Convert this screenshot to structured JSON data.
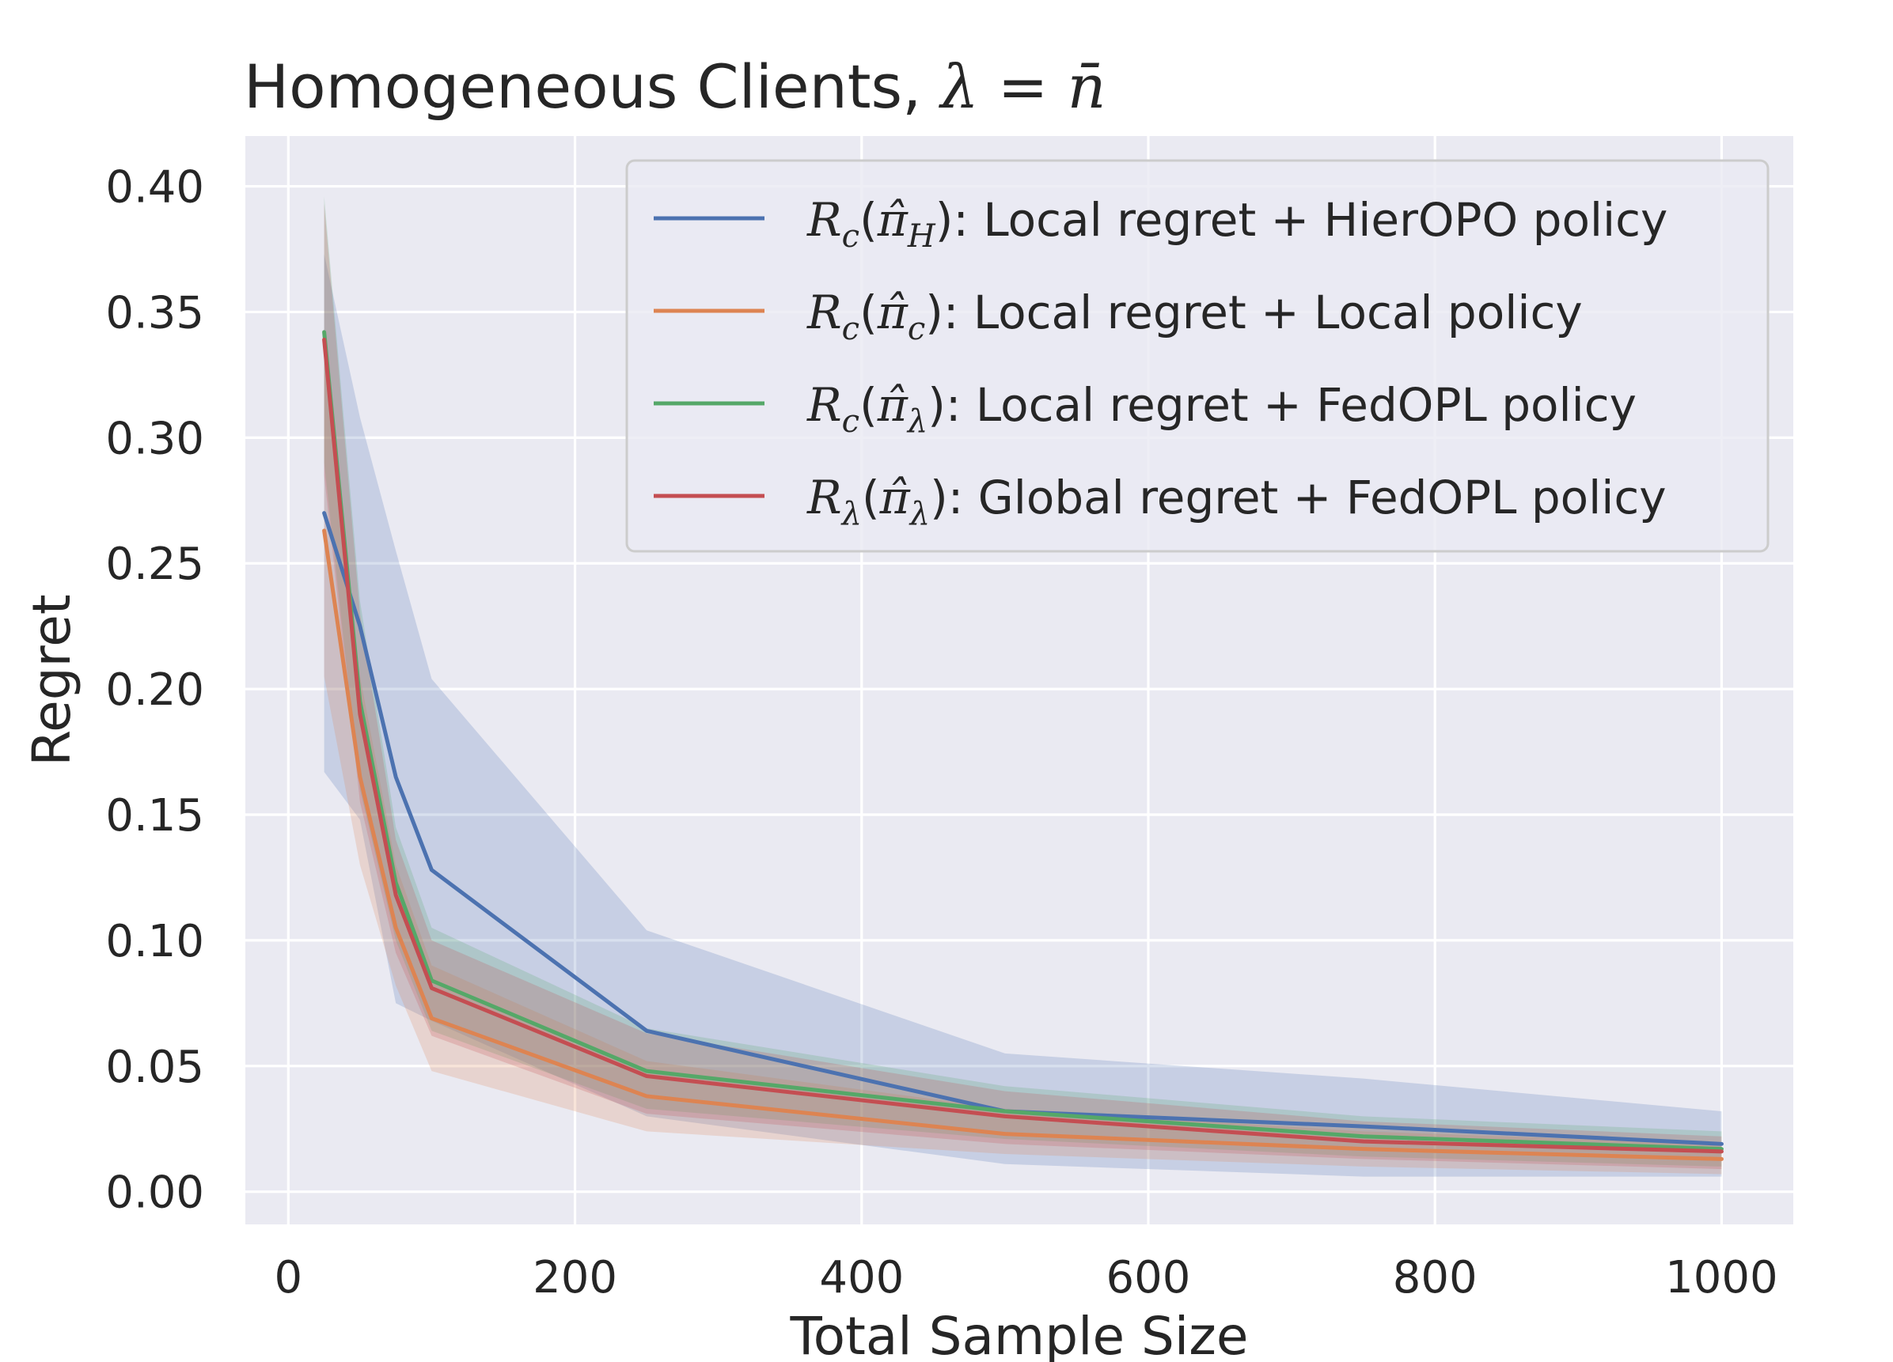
{
  "chart_data": {
    "type": "line",
    "title": "Homogeneous Clients, λ = n̄",
    "xlabel": "Total Sample Size",
    "ylabel": "Regret",
    "xlim": [
      -30,
      1050
    ],
    "ylim": [
      -0.013,
      0.42
    ],
    "xticks": [
      0,
      200,
      400,
      600,
      800,
      1000
    ],
    "xtick_labels": [
      "0",
      "200",
      "400",
      "600",
      "800",
      "1000"
    ],
    "yticks": [
      0.0,
      0.05,
      0.1,
      0.15,
      0.2,
      0.25,
      0.3,
      0.35,
      0.4
    ],
    "ytick_labels": [
      "0.00",
      "0.05",
      "0.10",
      "0.15",
      "0.20",
      "0.25",
      "0.30",
      "0.35",
      "0.40"
    ],
    "grid": true,
    "legend_position": "top-right",
    "x": [
      25,
      50,
      75,
      100,
      250,
      500,
      750,
      1000
    ],
    "series": [
      {
        "name": "R_c(π̂_H): Local regret + HierOPO policy",
        "legend_parts": {
          "R": "R",
          "R_sub": "c",
          "pi_sub": "H",
          "text": ": Local regret + HierOPO policy"
        },
        "color": "#4c72b0",
        "values": [
          0.27,
          0.225,
          0.165,
          0.128,
          0.064,
          0.032,
          0.026,
          0.019
        ],
        "lower": [
          0.167,
          0.148,
          0.075,
          0.068,
          0.03,
          0.011,
          0.006,
          0.006
        ],
        "upper": [
          0.373,
          0.308,
          0.255,
          0.204,
          0.104,
          0.055,
          0.045,
          0.032
        ]
      },
      {
        "name": "R_c(π̂_c): Local regret + Local policy",
        "legend_parts": {
          "R": "R",
          "R_sub": "c",
          "pi_sub": "c",
          "text": ": Local regret + Local policy"
        },
        "color": "#dd8452",
        "values": [
          0.263,
          0.165,
          0.105,
          0.069,
          0.038,
          0.023,
          0.017,
          0.013
        ],
        "lower": [
          0.205,
          0.13,
          0.082,
          0.048,
          0.024,
          0.015,
          0.01,
          0.007
        ],
        "upper": [
          0.33,
          0.205,
          0.13,
          0.09,
          0.052,
          0.033,
          0.024,
          0.019
        ]
      },
      {
        "name": "R_c(π̂_λ): Local regret + FedOPL policy",
        "legend_parts": {
          "R": "R",
          "R_sub": "c",
          "pi_sub": "λ",
          "text": ": Local regret + FedOPL policy"
        },
        "color": "#55a868",
        "values": [
          0.342,
          0.195,
          0.123,
          0.084,
          0.048,
          0.032,
          0.022,
          0.017
        ],
        "lower": [
          0.29,
          0.16,
          0.1,
          0.064,
          0.033,
          0.021,
          0.014,
          0.01
        ],
        "upper": [
          0.396,
          0.235,
          0.145,
          0.105,
          0.065,
          0.042,
          0.03,
          0.024
        ]
      },
      {
        "name": "R_λ(π̂_λ): Global regret + FedOPL policy",
        "legend_parts": {
          "R": "R",
          "R_sub": "λ",
          "pi_sub": "λ",
          "text": ": Global regret + FedOPL policy"
        },
        "color": "#c44e52",
        "values": [
          0.339,
          0.19,
          0.118,
          0.081,
          0.046,
          0.03,
          0.02,
          0.016
        ],
        "lower": [
          0.285,
          0.155,
          0.095,
          0.062,
          0.031,
          0.019,
          0.013,
          0.009
        ],
        "upper": [
          0.393,
          0.23,
          0.14,
          0.1,
          0.063,
          0.04,
          0.028,
          0.022
        ]
      }
    ]
  }
}
